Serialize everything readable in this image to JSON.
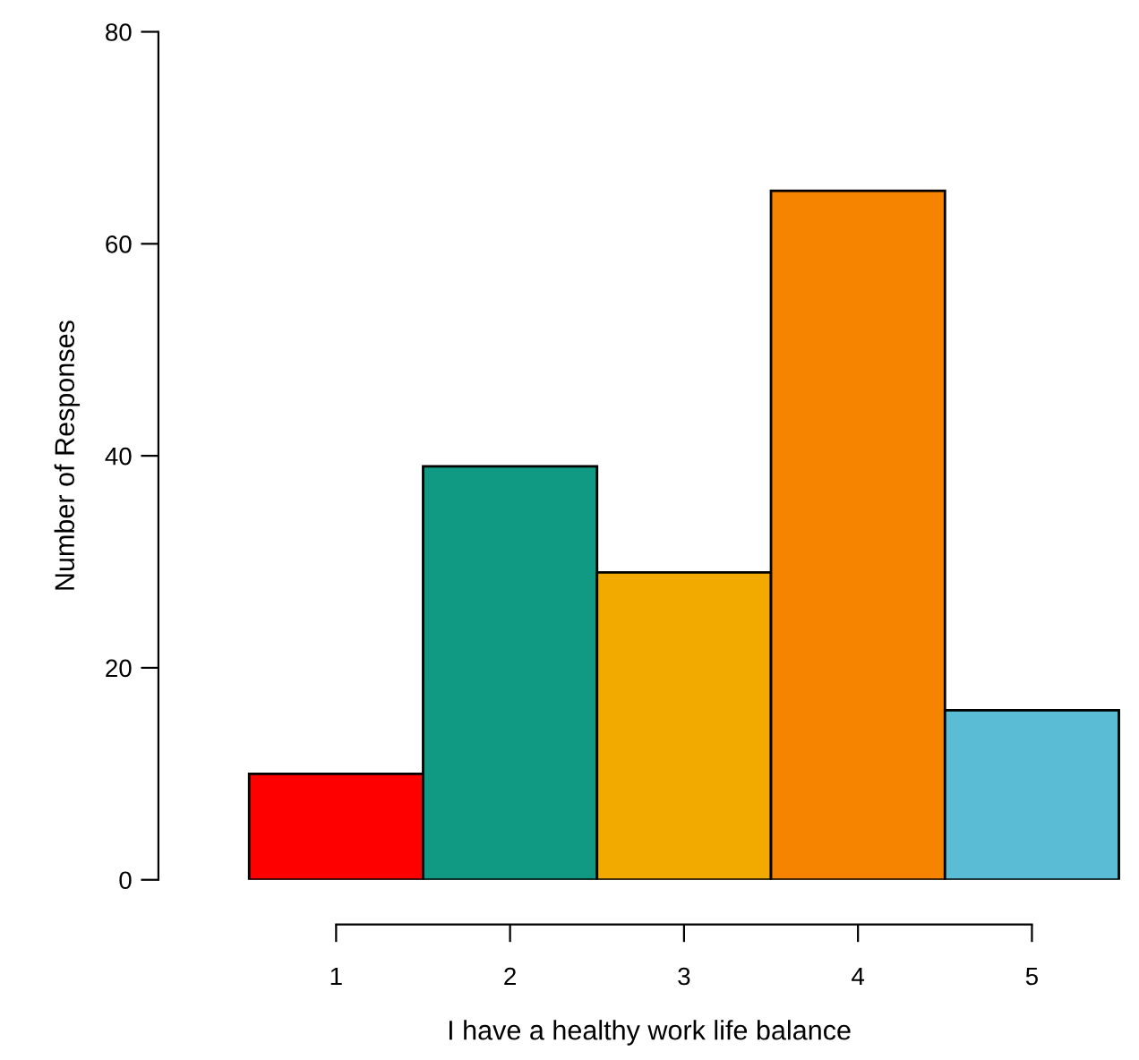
{
  "chart_data": {
    "type": "bar",
    "xlabel": "I have a healthy work life balance",
    "ylabel": "Number of Responses",
    "categories": [
      "1",
      "2",
      "3",
      "4",
      "5"
    ],
    "values": [
      10,
      39,
      29,
      65,
      16
    ],
    "colors": [
      "#ff0000",
      "#109a84",
      "#f2aa00",
      "#f78400",
      "#5bbcd6"
    ],
    "ylim": [
      0,
      80
    ],
    "yticks": [
      0,
      20,
      40,
      60,
      80
    ],
    "grid": false
  }
}
